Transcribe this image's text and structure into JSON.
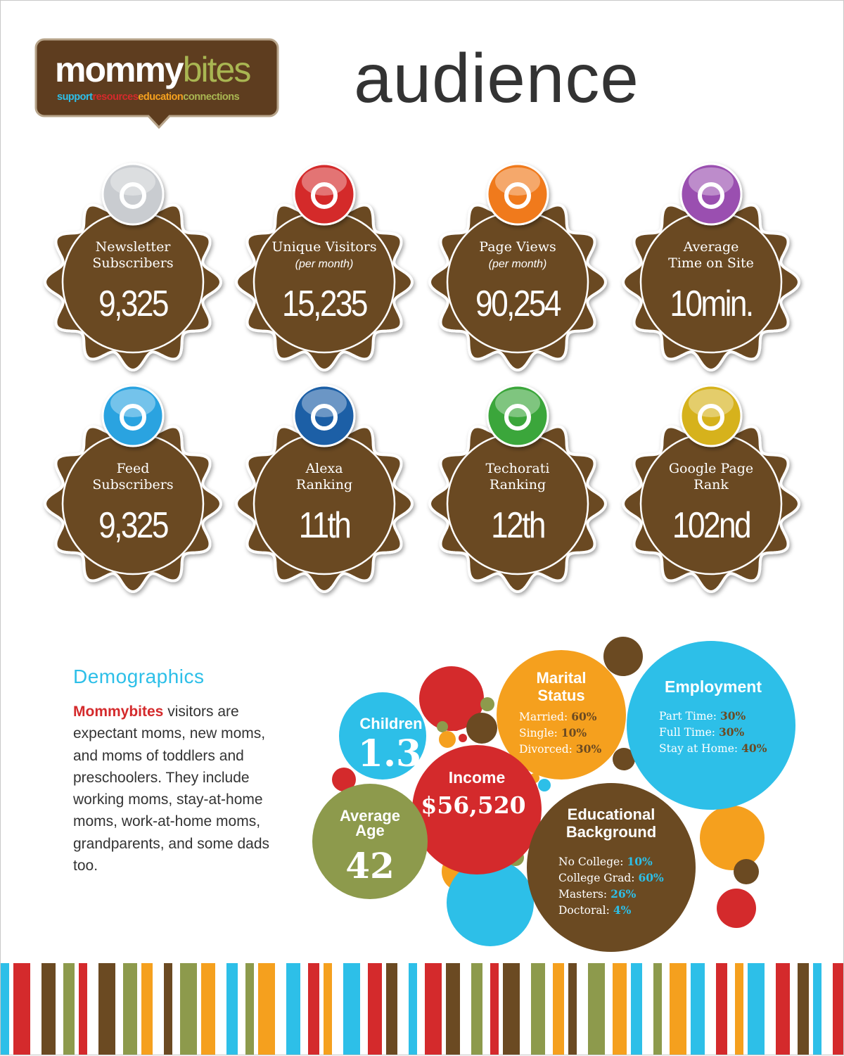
{
  "logo": {
    "name_a": "mommy",
    "name_b": "bites",
    "tagline": [
      "support",
      "resources",
      "education",
      "connections"
    ]
  },
  "header": {
    "title": "audience"
  },
  "badges": [
    {
      "label": [
        "Newsletter",
        "Subscribers"
      ],
      "value": "9,325"
    },
    {
      "label": [
        "Unique Visitors"
      ],
      "sub": "(per month)",
      "value": "15,235"
    },
    {
      "label": [
        "Page Views"
      ],
      "sub": "(per month)",
      "value": "90,254"
    },
    {
      "label": [
        "Average",
        "Time on Site"
      ],
      "value": "10min."
    },
    {
      "label": [
        "Feed",
        "Subscribers"
      ],
      "value": "9,325"
    },
    {
      "label": [
        "Alexa",
        "Ranking"
      ],
      "value": "11th"
    },
    {
      "label": [
        "Techorati",
        "Ranking"
      ],
      "value": "12th"
    },
    {
      "label": [
        "Google Page",
        "Rank"
      ],
      "value": "102nd"
    }
  ],
  "demographics": {
    "title": "Demographics",
    "highlight": "Mommybites",
    "text": "visitors are expectant moms, new moms, and moms of toddlers and preschoolers. They include working moms, stay-at-home moms, work-at-home moms, grandparents, and some dads too."
  },
  "bubbles": {
    "children": {
      "title": "Children",
      "value": "1.3"
    },
    "marital": {
      "title": [
        "Marital",
        "Status"
      ],
      "items": [
        {
          "label": "Married:",
          "value": "60%"
        },
        {
          "label": "Single:",
          "value": "10%"
        },
        {
          "label": "Divorced:",
          "value": "30%"
        }
      ]
    },
    "employment": {
      "title": "Employment",
      "items": [
        {
          "label": "Part Time:",
          "value": "30%"
        },
        {
          "label": "Full Time:",
          "value": "30%"
        },
        {
          "label": "Stay at Home:",
          "value": "40%"
        }
      ]
    },
    "income": {
      "title": "Income",
      "value": "$56,520"
    },
    "age": {
      "title": [
        "Average",
        "Age"
      ],
      "value": "42"
    },
    "education": {
      "title": [
        "Educational",
        "Background"
      ],
      "items": [
        {
          "label": "No College:",
          "value": "10%"
        },
        {
          "label": "College Grad:",
          "value": "60%"
        },
        {
          "label": "Masters:",
          "value": "26%"
        },
        {
          "label": "Doctoral:",
          "value": "4%"
        }
      ]
    }
  }
}
